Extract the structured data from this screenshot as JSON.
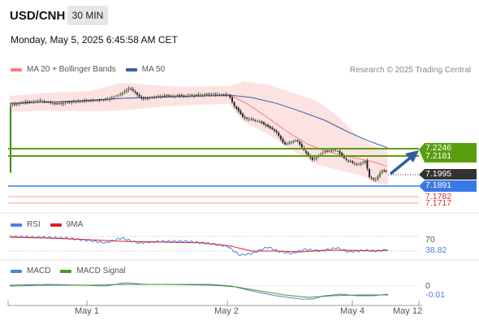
{
  "header": {
    "symbol": "USD/CNH",
    "timeframe": "30 MIN",
    "datetime": "Monday, May 5, 2025 6:45:58 AM CET"
  },
  "main_legend": [
    {
      "label": "MA 20 + Bollinger Bands",
      "color": "#f08080"
    },
    {
      "label": "MA 50",
      "color": "#3a5fa8"
    }
  ],
  "credit": "Research © 2025 Trading Central",
  "price_labels": {
    "r2": "7.2246",
    "r1": "7.2181",
    "last": "7.1995",
    "pivot": "7.1891",
    "s1": "7.1782",
    "s2": "7.1717"
  },
  "colors": {
    "resistance": "#5a9e10",
    "pivot": "#3a78e8",
    "support": "#e46a6a",
    "band_fill": "#fde2e2",
    "ma20": "#f08080",
    "ma50": "#3a5fa8",
    "last_tag": "#333333",
    "arrow": "#2f5fa0"
  },
  "rsi_legend": [
    {
      "label": "RSI",
      "color": "#4f7fe0"
    },
    {
      "label": "9MA",
      "color": "#e02020"
    }
  ],
  "rsi_axis": {
    "level": "70",
    "value": "38.82"
  },
  "macd_legend": [
    {
      "label": "MACD",
      "color": "#4f7fe0"
    },
    {
      "label": "MACD Signal",
      "color": "#4a9a20"
    }
  ],
  "macd_axis": {
    "level": "0",
    "value": "-0.01"
  },
  "x_axis": [
    "May 1",
    "May 2",
    "May 4",
    "May 12"
  ]
}
